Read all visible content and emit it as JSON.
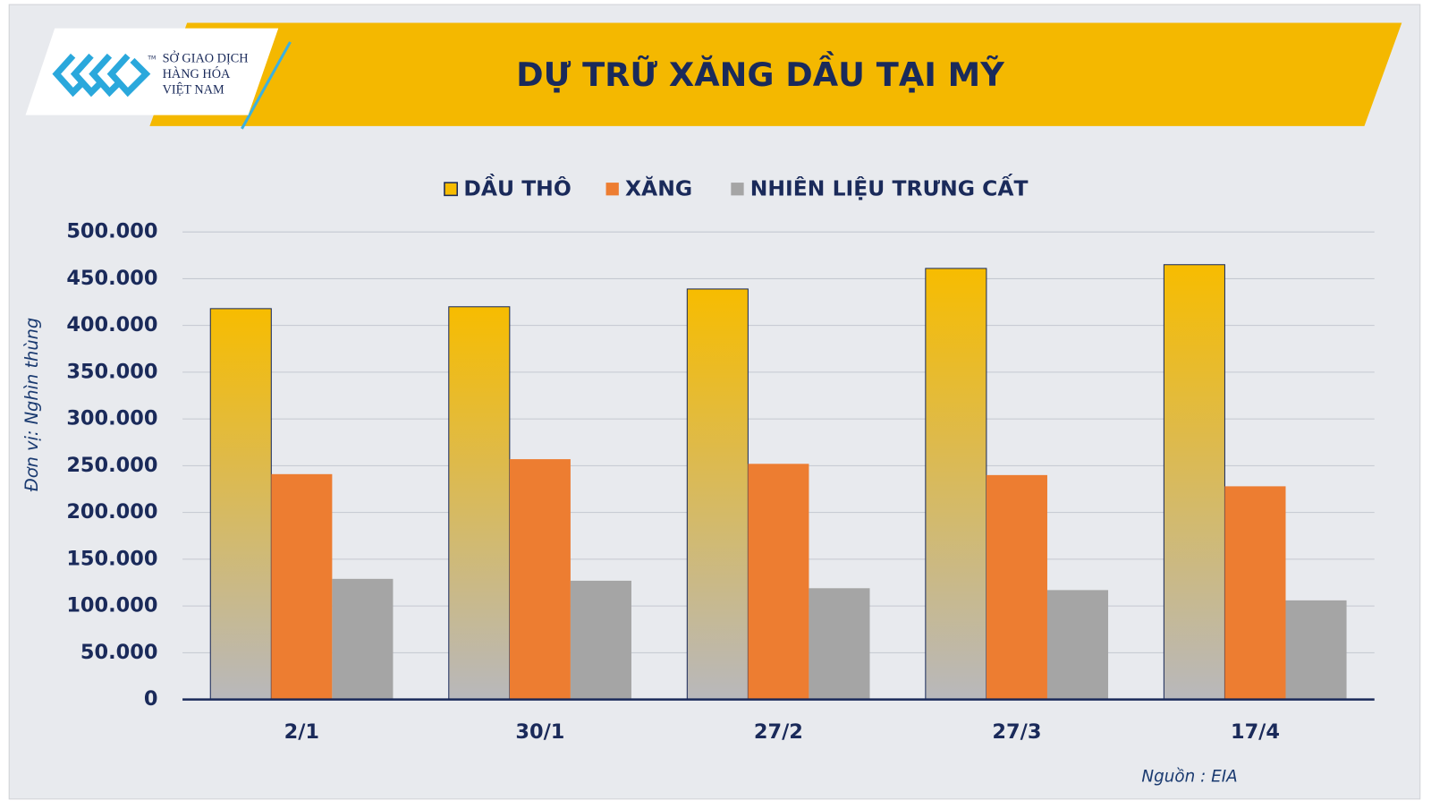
{
  "chart_data": {
    "type": "bar",
    "title": "DỰ TRỮ XĂNG DẦU TẠI MỸ",
    "logo_lines": [
      "SỞ GIAO DỊCH",
      "HÀNG HÓA",
      "VIỆT NAM"
    ],
    "logo_mark": "TM",
    "y_label": "Đơn vị: Nghìn thùng",
    "source": "Nguồn : EIA",
    "categories": [
      "2/1",
      "30/1",
      "27/2",
      "27/3",
      "17/4"
    ],
    "series": [
      {
        "name": "DẦU THÔ",
        "color": "#f7bc00",
        "values": [
          418000,
          420000,
          439000,
          461000,
          465000
        ]
      },
      {
        "name": "XĂNG",
        "color": "#ed7d31",
        "values": [
          241000,
          257000,
          252000,
          240000,
          228000
        ]
      },
      {
        "name": "NHIÊN LIỆU TRƯNG CẤT",
        "color": "#a5a5a5",
        "values": [
          129000,
          127000,
          119000,
          117000,
          106000
        ]
      }
    ],
    "ylim": [
      0,
      500000
    ],
    "yticks": [
      0,
      {
        "value": 50000,
        "label": "50.000"
      },
      {
        "value": 100000,
        "label": "100.000"
      },
      {
        "value": 150000,
        "label": "150.000"
      },
      {
        "value": 200000,
        "label": "200.000"
      },
      {
        "value": 250000,
        "label": "250.000"
      },
      {
        "value": 300000,
        "label": "300.000"
      },
      {
        "value": 350000,
        "label": "350.000"
      },
      {
        "value": 400000,
        "label": "400.000"
      },
      {
        "value": 450000,
        "label": "450.000"
      },
      {
        "value": 500000,
        "label": "500.000"
      }
    ],
    "grid": true
  }
}
